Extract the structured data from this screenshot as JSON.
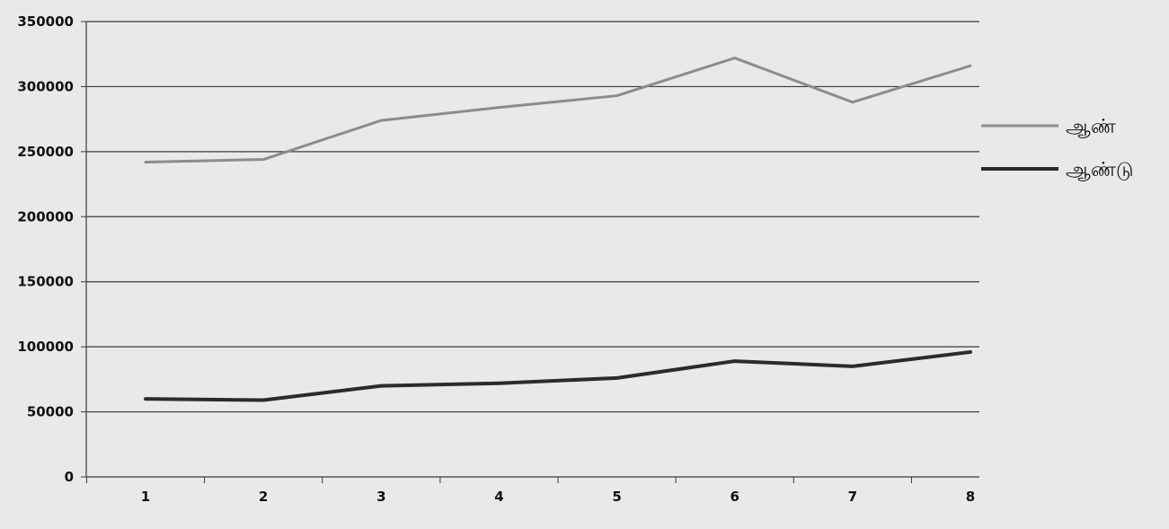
{
  "chart_data": {
    "type": "line",
    "title": "",
    "xlabel": "",
    "ylabel": "",
    "x": [
      1,
      2,
      3,
      4,
      5,
      6,
      7,
      8
    ],
    "x_tick_labels": [
      "1",
      "2",
      "3",
      "4",
      "5",
      "6",
      "7",
      "8"
    ],
    "ylim": [
      0,
      350000
    ],
    "y_ticks": [
      0,
      50000,
      100000,
      150000,
      200000,
      250000,
      300000,
      350000
    ],
    "y_tick_labels": [
      "0",
      "50000",
      "100000",
      "150000",
      "200000",
      "250000",
      "300000",
      "350000"
    ],
    "grid": true,
    "legend_position": "right",
    "series": [
      {
        "name": "ஆண்",
        "color": "#8c8c8c",
        "values": [
          242000,
          244000,
          274000,
          284000,
          293000,
          322000,
          288000,
          316000
        ]
      },
      {
        "name": "ஆண்டு",
        "color": "#2b2b2b",
        "values": [
          60000,
          59000,
          70000,
          72000,
          76000,
          89000,
          85000,
          96000
        ]
      }
    ]
  }
}
